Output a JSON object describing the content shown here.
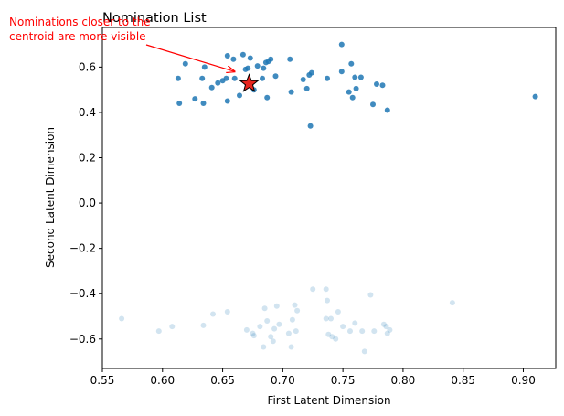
{
  "chart_data": {
    "type": "scatter",
    "title": "Nomination List",
    "xlabel": "First Latent Dimension",
    "ylabel": "Second Latent Dimension",
    "xlim": [
      0.55,
      0.927
    ],
    "ylim": [
      -0.73,
      0.775
    ],
    "xticks": [
      0.55,
      0.6,
      0.65,
      0.7,
      0.75,
      0.8,
      0.85,
      0.9
    ],
    "xtick_labels": [
      "0.55",
      "0.60",
      "0.65",
      "0.70",
      "0.75",
      "0.80",
      "0.85",
      "0.90"
    ],
    "yticks": [
      -0.6,
      -0.4,
      -0.2,
      0.0,
      0.2,
      0.4,
      0.6
    ],
    "ytick_labels": [
      "−0.6",
      "−0.4",
      "−0.2",
      "0.0",
      "0.2",
      "0.4",
      "0.6"
    ],
    "grid": false,
    "annotation": {
      "text_lines": [
        "Nominations closer to the",
        "centroid are more visible"
      ],
      "text_anchor": [
        0.475,
        0.618
      ],
      "arrow_to": [
        0.66,
        0.58
      ],
      "color": "#ff0000"
    },
    "centroid": {
      "x": 0.672,
      "y": 0.527,
      "color": "#e8261e"
    },
    "series": [
      {
        "color": "#1f77b4",
        "opacity": 0.85,
        "points": [
          [
            0.613,
            0.55
          ],
          [
            0.614,
            0.44
          ],
          [
            0.619,
            0.615
          ],
          [
            0.627,
            0.46
          ],
          [
            0.633,
            0.55
          ],
          [
            0.634,
            0.44
          ],
          [
            0.635,
            0.6
          ],
          [
            0.641,
            0.51
          ],
          [
            0.646,
            0.53
          ],
          [
            0.65,
            0.54
          ],
          [
            0.653,
            0.55
          ],
          [
            0.654,
            0.65
          ],
          [
            0.654,
            0.45
          ],
          [
            0.659,
            0.635
          ],
          [
            0.66,
            0.55
          ],
          [
            0.664,
            0.475
          ],
          [
            0.667,
            0.655
          ],
          [
            0.669,
            0.59
          ],
          [
            0.671,
            0.595
          ],
          [
            0.673,
            0.64
          ],
          [
            0.676,
            0.5
          ],
          [
            0.679,
            0.605
          ],
          [
            0.683,
            0.55
          ],
          [
            0.684,
            0.595
          ],
          [
            0.686,
            0.62
          ],
          [
            0.687,
            0.465
          ],
          [
            0.688,
            0.625
          ],
          [
            0.69,
            0.635
          ],
          [
            0.694,
            0.56
          ],
          [
            0.706,
            0.635
          ],
          [
            0.707,
            0.49
          ],
          [
            0.717,
            0.545
          ],
          [
            0.72,
            0.505
          ],
          [
            0.722,
            0.565
          ],
          [
            0.723,
            0.34
          ],
          [
            0.724,
            0.575
          ],
          [
            0.737,
            0.55
          ],
          [
            0.749,
            0.7
          ],
          [
            0.749,
            0.58
          ],
          [
            0.755,
            0.49
          ],
          [
            0.757,
            0.615
          ],
          [
            0.758,
            0.465
          ],
          [
            0.76,
            0.555
          ],
          [
            0.761,
            0.505
          ],
          [
            0.765,
            0.555
          ],
          [
            0.775,
            0.435
          ],
          [
            0.778,
            0.525
          ],
          [
            0.783,
            0.52
          ],
          [
            0.787,
            0.41
          ],
          [
            0.91,
            0.47
          ]
        ]
      },
      {
        "color": "#1f77b4",
        "opacity": 0.2,
        "points": [
          [
            0.566,
            -0.51
          ],
          [
            0.597,
            -0.565
          ],
          [
            0.608,
            -0.545
          ],
          [
            0.634,
            -0.54
          ],
          [
            0.642,
            -0.49
          ],
          [
            0.654,
            -0.48
          ],
          [
            0.67,
            -0.56
          ],
          [
            0.675,
            -0.575
          ],
          [
            0.676,
            -0.585
          ],
          [
            0.681,
            -0.545
          ],
          [
            0.684,
            -0.635
          ],
          [
            0.685,
            -0.465
          ],
          [
            0.687,
            -0.52
          ],
          [
            0.69,
            -0.59
          ],
          [
            0.692,
            -0.61
          ],
          [
            0.693,
            -0.555
          ],
          [
            0.695,
            -0.455
          ],
          [
            0.697,
            -0.535
          ],
          [
            0.705,
            -0.575
          ],
          [
            0.707,
            -0.635
          ],
          [
            0.708,
            -0.515
          ],
          [
            0.71,
            -0.45
          ],
          [
            0.711,
            -0.565
          ],
          [
            0.712,
            -0.475
          ],
          [
            0.725,
            -0.38
          ],
          [
            0.736,
            -0.38
          ],
          [
            0.736,
            -0.51
          ],
          [
            0.737,
            -0.43
          ],
          [
            0.738,
            -0.58
          ],
          [
            0.74,
            -0.51
          ],
          [
            0.741,
            -0.59
          ],
          [
            0.744,
            -0.6
          ],
          [
            0.746,
            -0.48
          ],
          [
            0.75,
            -0.545
          ],
          [
            0.756,
            -0.565
          ],
          [
            0.76,
            -0.53
          ],
          [
            0.766,
            -0.565
          ],
          [
            0.768,
            -0.655
          ],
          [
            0.773,
            -0.405
          ],
          [
            0.776,
            -0.565
          ],
          [
            0.784,
            -0.535
          ],
          [
            0.786,
            -0.545
          ],
          [
            0.787,
            -0.575
          ],
          [
            0.789,
            -0.56
          ],
          [
            0.841,
            -0.44
          ]
        ]
      }
    ]
  }
}
